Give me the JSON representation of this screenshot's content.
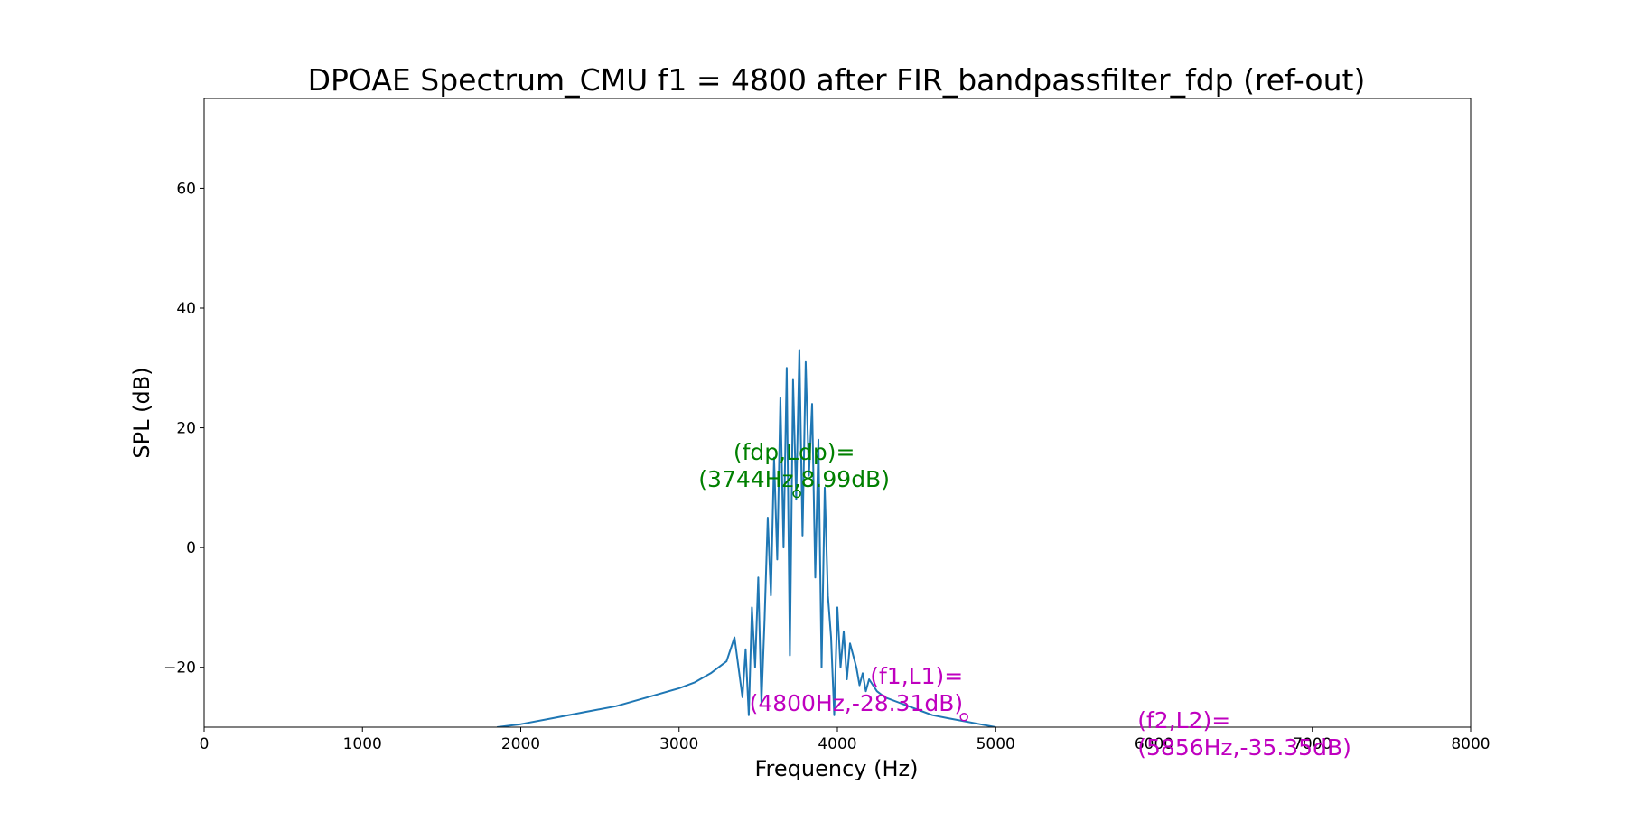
{
  "chart_data": {
    "type": "line",
    "title": "DPOAE Spectrum_CMU f1 = 4800 after FIR_bandpassfilter_fdp (ref-out)",
    "xlabel": "Frequency (Hz)",
    "ylabel": "SPL (dB)",
    "xlim": [
      0,
      8000
    ],
    "ylim": [
      -30,
      75
    ],
    "xticks": [
      0,
      1000,
      2000,
      3000,
      4000,
      5000,
      6000,
      7000,
      8000
    ],
    "xtick_labels": [
      "0",
      "1000",
      "2000",
      "3000",
      "4000",
      "5000",
      "6000",
      "7000",
      "8000"
    ],
    "yticks": [
      -20,
      0,
      20,
      40,
      60
    ],
    "ytick_labels": [
      "−20",
      "0",
      "20",
      "40",
      "60"
    ],
    "grid": false,
    "series": [
      {
        "color": "#1f77b4",
        "x": [
          1850,
          2000,
          2200,
          2400,
          2600,
          2800,
          3000,
          3100,
          3200,
          3300,
          3350,
          3400,
          3420,
          3440,
          3460,
          3480,
          3500,
          3520,
          3540,
          3560,
          3580,
          3600,
          3620,
          3640,
          3660,
          3680,
          3700,
          3720,
          3740,
          3760,
          3780,
          3800,
          3820,
          3840,
          3860,
          3880,
          3900,
          3920,
          3940,
          3960,
          3980,
          4000,
          4020,
          4040,
          4060,
          4080,
          4100,
          4120,
          4140,
          4160,
          4180,
          4200,
          4250,
          4300,
          4400,
          4500,
          4600,
          4700,
          4800,
          4900,
          5000
        ],
        "y": [
          -30,
          -29.5,
          -28.5,
          -27.5,
          -26.5,
          -25,
          -23.5,
          -22.5,
          -21,
          -19,
          -15,
          -25,
          -17,
          -28,
          -10,
          -20,
          -5,
          -26,
          -12,
          5,
          -8,
          15,
          -2,
          25,
          0,
          30,
          -18,
          28,
          8,
          33,
          2,
          31,
          12,
          24,
          -5,
          18,
          -20,
          10,
          -8,
          -15,
          -28,
          -10,
          -20,
          -14,
          -22,
          -16,
          -18,
          -20,
          -23,
          -21,
          -24,
          -22,
          -24,
          -25,
          -26,
          -27,
          -28,
          -28.5,
          -29,
          -29.5,
          -30
        ]
      }
    ],
    "annotations": [
      {
        "text": "(fdp,Ldp)=\n(3744Hz,8.99dB)",
        "x": 3744,
        "y": 8.99,
        "color": "#008000"
      },
      {
        "text": "(f1,L1)=\n(4800Hz,-28.31dB)",
        "x": 4800,
        "y": -28.31,
        "color": "#bf00bf"
      },
      {
        "text": "(f2,L2)=\n(5856Hz,-35.35dB)",
        "x": 5856,
        "y": -35.35,
        "color": "#bf00bf"
      }
    ]
  }
}
